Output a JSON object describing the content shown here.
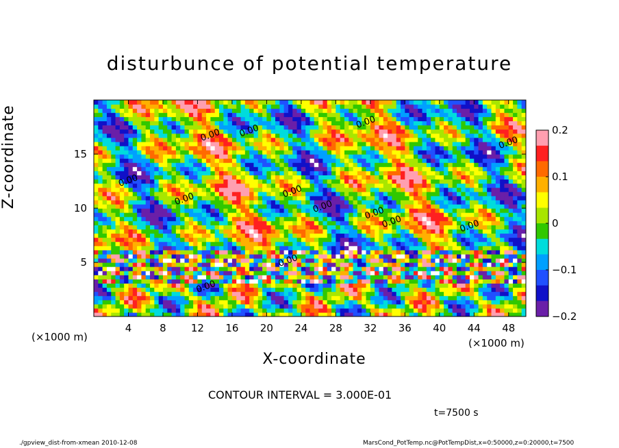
{
  "title": "disturbunce of potential temperature",
  "chart_data": {
    "type": "heatmap",
    "title": "disturbunce of potential temperature",
    "xlabel": "X-coordinate",
    "ylabel": "Z-coordinate",
    "x_unit": "(×1000 m)",
    "y_unit": "(×1000 m)",
    "xlim": [
      0,
      50
    ],
    "ylim": [
      0,
      20
    ],
    "x_ticks": [
      4,
      8,
      12,
      16,
      20,
      24,
      28,
      32,
      36,
      40,
      44,
      48
    ],
    "y_ticks": [
      5,
      10,
      15
    ],
    "colorbar": {
      "min": -0.2,
      "max": 0.2,
      "ticks": [
        0.2,
        0.1,
        0,
        -0.1,
        -0.2
      ],
      "tick_labels": [
        "0.2",
        "0.1",
        "0",
        "−0.1",
        "−0.2"
      ],
      "colors": [
        "#ff9fb0",
        "#ff2020",
        "#ff6a00",
        "#ffb000",
        "#ffff00",
        "#a8e600",
        "#30c800",
        "#00dcdc",
        "#00a0ff",
        "#2050ff",
        "#1010c8",
        "#6a1fa8"
      ]
    },
    "contour_label": "0.00",
    "contour_interval_text": "CONTOUR INTERVAL = 3.000E-01"
  },
  "annotations": {
    "time": "t=7500 s",
    "footer_left": "./gpview_dist-from-xmean   2010-12-08",
    "footer_right": "MarsCond_PotTemp.nc@PotTempDist,x=0:50000,z=0:20000,t=7500"
  }
}
